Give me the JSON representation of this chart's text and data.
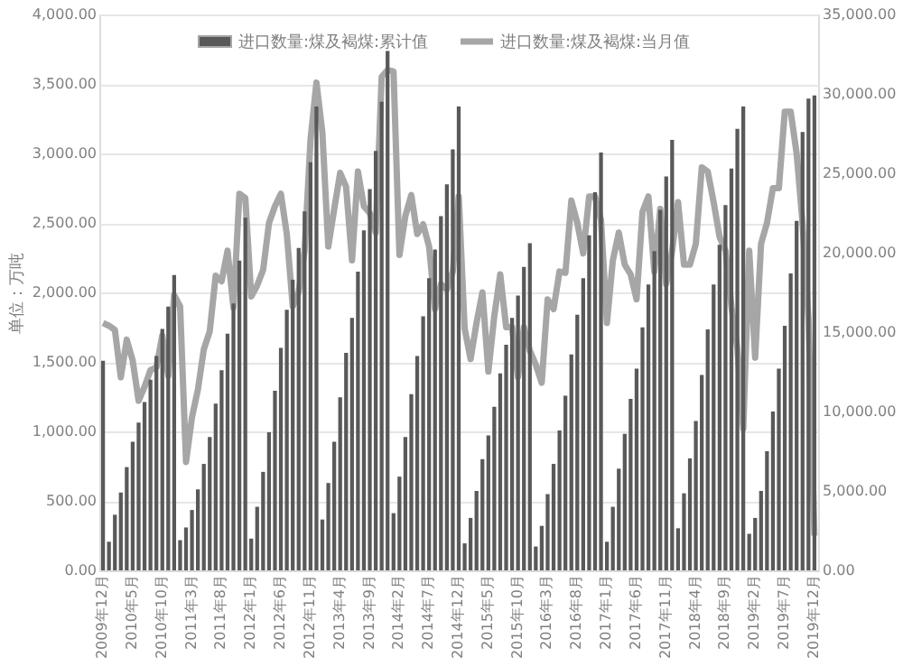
{
  "chart_data": {
    "type": "bar",
    "ylabel": "单位：万吨",
    "categories": [
      "2009年12月",
      null,
      null,
      null,
      null,
      "2010年5月",
      null,
      null,
      null,
      null,
      "2010年10月",
      null,
      null,
      null,
      null,
      "2011年3月",
      null,
      null,
      null,
      null,
      "2011年8月",
      null,
      null,
      null,
      null,
      "2012年1月",
      null,
      null,
      null,
      null,
      "2012年6月",
      null,
      null,
      null,
      null,
      "2012年11月",
      null,
      null,
      null,
      null,
      "2013年4月",
      null,
      null,
      null,
      null,
      "2013年9月",
      null,
      null,
      null,
      null,
      "2014年2月",
      null,
      null,
      null,
      null,
      "2014年7月",
      null,
      null,
      null,
      null,
      "2014年12月",
      null,
      null,
      null,
      null,
      "2015年5月",
      null,
      null,
      null,
      null,
      "2015年10月",
      null,
      null,
      null,
      null,
      "2016年3月",
      null,
      null,
      null,
      null,
      "2016年8月",
      null,
      null,
      null,
      null,
      "2017年1月",
      null,
      null,
      null,
      null,
      "2017年6月",
      null,
      null,
      null,
      null,
      "2017年11月",
      null,
      null,
      null,
      null,
      "2018年4月",
      null,
      null,
      null,
      null,
      "2018年9月",
      null,
      null,
      null,
      null,
      "2019年2月",
      null,
      null,
      null,
      null,
      "2019年7月",
      null,
      null,
      null,
      null,
      "2019年12月"
    ],
    "series": [
      {
        "name": "进口数量:煤及褐煤:累计值",
        "axis": "y2",
        "color": "#595959",
        "values": [
          13200,
          1800,
          3500,
          4900,
          6500,
          8100,
          9300,
          10600,
          12000,
          13500,
          15200,
          16600,
          18600,
          1900,
          2700,
          3800,
          5100,
          6700,
          8400,
          10500,
          12600,
          14900,
          16800,
          19500,
          22200,
          2000,
          4000,
          6200,
          8700,
          11300,
          14000,
          16400,
          18300,
          20300,
          22600,
          25700,
          29200,
          3200,
          5500,
          8100,
          10900,
          13700,
          15900,
          18800,
          21400,
          24000,
          26400,
          29500,
          32700,
          3600,
          5900,
          8400,
          11100,
          13500,
          16000,
          18400,
          20200,
          22300,
          24300,
          26500,
          29200,
          1700,
          3300,
          5000,
          7000,
          8500,
          10300,
          12400,
          14200,
          15900,
          17300,
          19100,
          20600,
          1500,
          2800,
          4800,
          6700,
          8800,
          11000,
          13600,
          16100,
          18400,
          21100,
          23800,
          26300,
          1800,
          4000,
          6400,
          8600,
          10800,
          12700,
          15300,
          18000,
          20100,
          22700,
          24800,
          27100,
          2650,
          4850,
          7050,
          9400,
          12300,
          15170,
          18000,
          20500,
          23000,
          25300,
          27800,
          29200,
          2300,
          3300,
          5000,
          7500,
          10000,
          12700,
          15400,
          18700,
          22000,
          27600,
          29700,
          29900
        ]
      },
      {
        "name": "进口数量:煤及褐煤:当月值",
        "type": "line",
        "color": "#a6a6a6",
        "values": [
          1780,
          1760,
          1730,
          1390,
          1660,
          1510,
          1220,
          1320,
          1440,
          1460,
          1690,
          1400,
          1980,
          1900,
          780,
          1100,
          1300,
          1590,
          1720,
          2120,
          2080,
          2300,
          1890,
          2710,
          2680,
          1970,
          2050,
          2160,
          2500,
          2620,
          2710,
          2420,
          1900,
          2000,
          2300,
          3100,
          3510,
          3150,
          2330,
          2600,
          2860,
          2760,
          2230,
          2870,
          2620,
          2570,
          2430,
          3550,
          3600,
          3590,
          2270,
          2550,
          2700,
          2420,
          2490,
          2330,
          1880,
          2060,
          2020,
          2150,
          2690,
          1740,
          1520,
          1780,
          2000,
          1430,
          1830,
          2130,
          1750,
          1750,
          1390,
          1750,
          1580,
          1480,
          1350,
          1950,
          1880,
          2150,
          2140,
          2660,
          2500,
          2280,
          2690,
          2690,
          2520,
          1780,
          2230,
          2430,
          2200,
          2130,
          1950,
          2580,
          2690,
          2150,
          2600,
          2060,
          2300,
          2650,
          2200,
          2200,
          2350,
          2900,
          2870,
          2650,
          2400,
          2300,
          1900,
          1600,
          1020,
          2300,
          1530,
          2350,
          2500,
          2750,
          2750,
          3300,
          3300,
          3000,
          2500,
          1800,
          250
        ]
      }
    ],
    "ylim": [
      0,
      4000
    ],
    "yticks": [
      {
        "value": 0,
        "label": "0.00"
      },
      {
        "value": 500,
        "label": "500.00"
      },
      {
        "value": 1000,
        "label": "1,000.00"
      },
      {
        "value": 1500,
        "label": "1,500.00"
      },
      {
        "value": 2000,
        "label": "2,000.00"
      },
      {
        "value": 2500,
        "label": "2,500.00"
      },
      {
        "value": 3000,
        "label": "3,000.00"
      },
      {
        "value": 3500,
        "label": "3,500.00"
      },
      {
        "value": 4000,
        "label": "4,000.00"
      }
    ],
    "y2lim": [
      0,
      35000
    ],
    "y2ticks": [
      {
        "value": 0,
        "label": "0.00"
      },
      {
        "value": 5000,
        "label": "5,000.00"
      },
      {
        "value": 10000,
        "label": "10,000.00"
      },
      {
        "value": 15000,
        "label": "15,000.00"
      },
      {
        "value": 20000,
        "label": "20,000.00"
      },
      {
        "value": 25000,
        "label": "25,000.00"
      },
      {
        "value": 30000,
        "label": "30,000.00"
      },
      {
        "value": 35000,
        "label": "35,000.00"
      }
    ],
    "grid": "y",
    "legend": "top",
    "marker": "none",
    "line_style": "solid"
  }
}
